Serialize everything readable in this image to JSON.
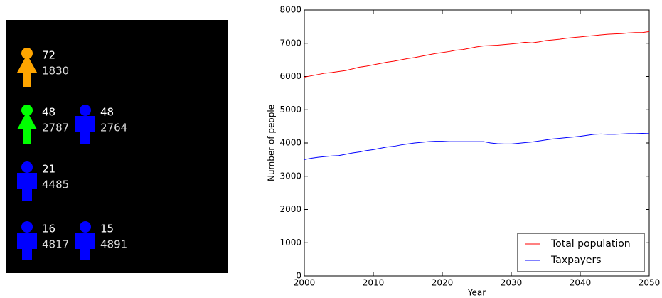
{
  "panel": {
    "people": [
      {
        "color": "#ffa500",
        "shape": "dress",
        "top": 72,
        "bottom": 1830
      },
      {
        "color": "#00ff00",
        "shape": "dress",
        "top": 48,
        "bottom": 2787
      },
      {
        "color": "#0000ff",
        "shape": "suit",
        "top": 48,
        "bottom": 2764
      },
      {
        "color": "#0000ff",
        "shape": "suit",
        "top": 21,
        "bottom": 4485
      },
      {
        "color": "#0000ff",
        "shape": "suit",
        "top": 16,
        "bottom": 4817
      },
      {
        "color": "#0000ff",
        "shape": "suit",
        "top": 15,
        "bottom": 4891
      }
    ]
  },
  "chart_data": {
    "type": "line",
    "x_label": "Year",
    "y_label": "Number of people",
    "x": [
      2000,
      2001,
      2002,
      2003,
      2004,
      2005,
      2006,
      2007,
      2008,
      2009,
      2010,
      2011,
      2012,
      2013,
      2014,
      2015,
      2016,
      2017,
      2018,
      2019,
      2020,
      2021,
      2022,
      2023,
      2024,
      2025,
      2026,
      2027,
      2028,
      2029,
      2030,
      2031,
      2032,
      2033,
      2034,
      2035,
      2036,
      2037,
      2038,
      2039,
      2040,
      2041,
      2042,
      2043,
      2044,
      2045,
      2046,
      2047,
      2048,
      2049,
      2050
    ],
    "series": [
      {
        "name": "Total population",
        "color": "#ff0000",
        "values": [
          5980,
          6020,
          6060,
          6100,
          6120,
          6150,
          6180,
          6230,
          6280,
          6310,
          6350,
          6390,
          6430,
          6460,
          6500,
          6540,
          6570,
          6610,
          6650,
          6690,
          6720,
          6750,
          6790,
          6810,
          6850,
          6890,
          6920,
          6930,
          6940,
          6960,
          6980,
          7000,
          7030,
          7010,
          7040,
          7080,
          7100,
          7120,
          7150,
          7170,
          7190,
          7210,
          7230,
          7250,
          7270,
          7280,
          7290,
          7310,
          7320,
          7320,
          7350
        ]
      },
      {
        "name": "Taxpayers",
        "color": "#0000ff",
        "values": [
          3500,
          3540,
          3570,
          3590,
          3610,
          3620,
          3660,
          3700,
          3730,
          3770,
          3800,
          3840,
          3880,
          3900,
          3940,
          3970,
          4000,
          4020,
          4040,
          4050,
          4050,
          4040,
          4040,
          4040,
          4040,
          4040,
          4040,
          4000,
          3980,
          3970,
          3970,
          3990,
          4010,
          4030,
          4060,
          4090,
          4120,
          4140,
          4160,
          4180,
          4200,
          4230,
          4260,
          4270,
          4260,
          4260,
          4270,
          4280,
          4280,
          4290,
          4280
        ]
      }
    ],
    "xlim": [
      2000,
      2050
    ],
    "xticks": [
      2000,
      2010,
      2020,
      2030,
      2040,
      2050
    ],
    "ylim": [
      0,
      8000
    ],
    "yticks": [
      0,
      1000,
      2000,
      3000,
      4000,
      5000,
      6000,
      7000,
      8000
    ],
    "grid": false,
    "legend": "lower right"
  }
}
